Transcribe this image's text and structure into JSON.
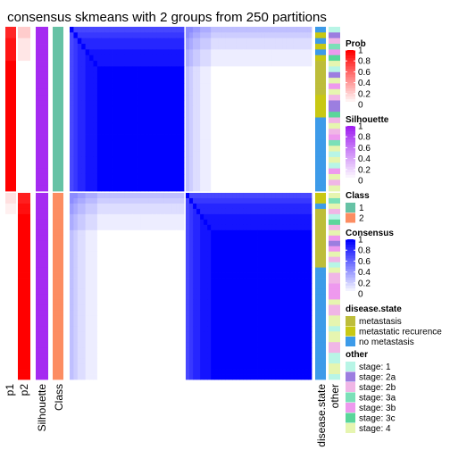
{
  "title": "consensus skmeans with 2 groups from 250 partitions",
  "chart_data": {
    "type": "heatmap",
    "title": "consensus skmeans with 2 groups from 250 partitions",
    "n_groups": 2,
    "n_partitions": 250,
    "column_labels": [
      "p1",
      "p2",
      "Silhouette",
      "Class"
    ],
    "annotation_labels": [
      "disease.state",
      "other"
    ],
    "group_sizes": [
      29,
      35
    ],
    "class_colors": {
      "1": "#66c2a5",
      "2": "#fc8d62"
    },
    "consensus_block_value": 1,
    "legends": [
      {
        "title": "Prob",
        "type": "gradient",
        "ticks": [
          "1",
          "0.8",
          "0.6",
          "0.4",
          "0.2",
          "0"
        ],
        "colors": [
          "#ff0000",
          "#ffffff"
        ]
      },
      {
        "title": "Silhouette",
        "type": "gradient",
        "ticks": [
          "1",
          "0.8",
          "0.6",
          "0.4",
          "0.2",
          "0"
        ],
        "colors": [
          "#a020f0",
          "#ffffff"
        ]
      },
      {
        "title": "Class",
        "type": "discrete",
        "items": [
          {
            "label": "1",
            "color": "#66c2a5"
          },
          {
            "label": "2",
            "color": "#fc8d62"
          }
        ]
      },
      {
        "title": "Consensus",
        "type": "gradient",
        "ticks": [
          "1",
          "0.8",
          "0.6",
          "0.4",
          "0.2",
          "0"
        ],
        "colors": [
          "#0000ff",
          "#ffffff"
        ]
      },
      {
        "title": "disease.state",
        "type": "discrete",
        "items": [
          {
            "label": "metastasis",
            "color": "#bdbd3a"
          },
          {
            "label": "metastatic recurence",
            "color": "#c8c814"
          },
          {
            "label": "no metastasis",
            "color": "#3d9be9"
          }
        ]
      },
      {
        "title": "other",
        "type": "discrete",
        "items": [
          {
            "label": "stage: 1",
            "color": "#b8f5e6"
          },
          {
            "label": "stage: 2a",
            "color": "#9c7ee0"
          },
          {
            "label": "stage: 2b",
            "color": "#f0b6e6"
          },
          {
            "label": "stage: 3a",
            "color": "#7be0b8"
          },
          {
            "label": "stage: 3b",
            "color": "#ee99ee"
          },
          {
            "label": "stage: 3c",
            "color": "#5ad69a"
          },
          {
            "label": "stage: 4",
            "color": "#e6f5b0"
          }
        ]
      }
    ]
  }
}
